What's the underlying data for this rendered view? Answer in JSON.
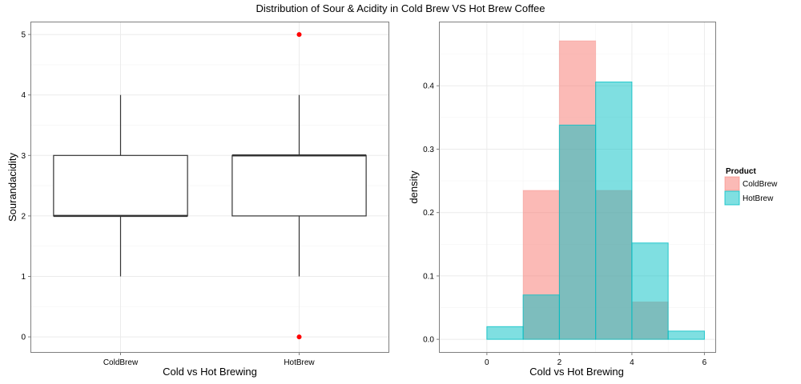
{
  "figure_title": "Distribution of Sour & Acidity in Cold Brew VS Hot Brew Coffee",
  "colors": {
    "coldbrew": "#F8766D",
    "hotbrew": "#00BFC4",
    "outlier": "#FF0000",
    "grid": "#EBEBEB",
    "panel_border": "#7F7F7F",
    "box_line": "#333333"
  },
  "chart_data": [
    {
      "type": "box",
      "title": "",
      "xlabel": "Cold vs Hot Brewing",
      "ylabel": "Sourandacidity",
      "categories": [
        "ColdBrew",
        "HotBrew"
      ],
      "ylim": [
        -0.25,
        5.2
      ],
      "yticks": [
        0,
        1,
        2,
        3,
        4,
        5
      ],
      "boxes": [
        {
          "name": "ColdBrew",
          "lower_whisker": 1,
          "q1": 2,
          "median": 2,
          "q3": 3,
          "upper_whisker": 4,
          "outliers": []
        },
        {
          "name": "HotBrew",
          "lower_whisker": 1,
          "q1": 2,
          "median": 3,
          "q3": 3,
          "upper_whisker": 4,
          "outliers": [
            0,
            5
          ]
        }
      ],
      "grid": true
    },
    {
      "type": "histogram",
      "title": "",
      "xlabel": "Cold vs Hot Brewing",
      "ylabel": "density",
      "xlim": [
        -1.3,
        6.3
      ],
      "ylim": [
        -0.02,
        0.5
      ],
      "xticks": [
        0,
        2,
        4,
        6
      ],
      "yticks": [
        0.0,
        0.1,
        0.2,
        0.3,
        0.4
      ],
      "ytick_labels": [
        "0.0",
        "0.1",
        "0.2",
        "0.3",
        "0.4"
      ],
      "bin_edges": [
        -1,
        0,
        1,
        2,
        3,
        4,
        5,
        6
      ],
      "series": [
        {
          "name": "ColdBrew",
          "values": [
            0,
            0,
            0.235,
            0.471,
            0.235,
            0.059,
            0
          ]
        },
        {
          "name": "HotBrew",
          "values": [
            0,
            0.02,
            0.07,
            0.338,
            0.406,
            0.152,
            0.013
          ]
        }
      ],
      "legend": {
        "title": "Product",
        "position": "right",
        "entries": [
          "ColdBrew",
          "HotBrew"
        ]
      },
      "grid": true
    }
  ]
}
